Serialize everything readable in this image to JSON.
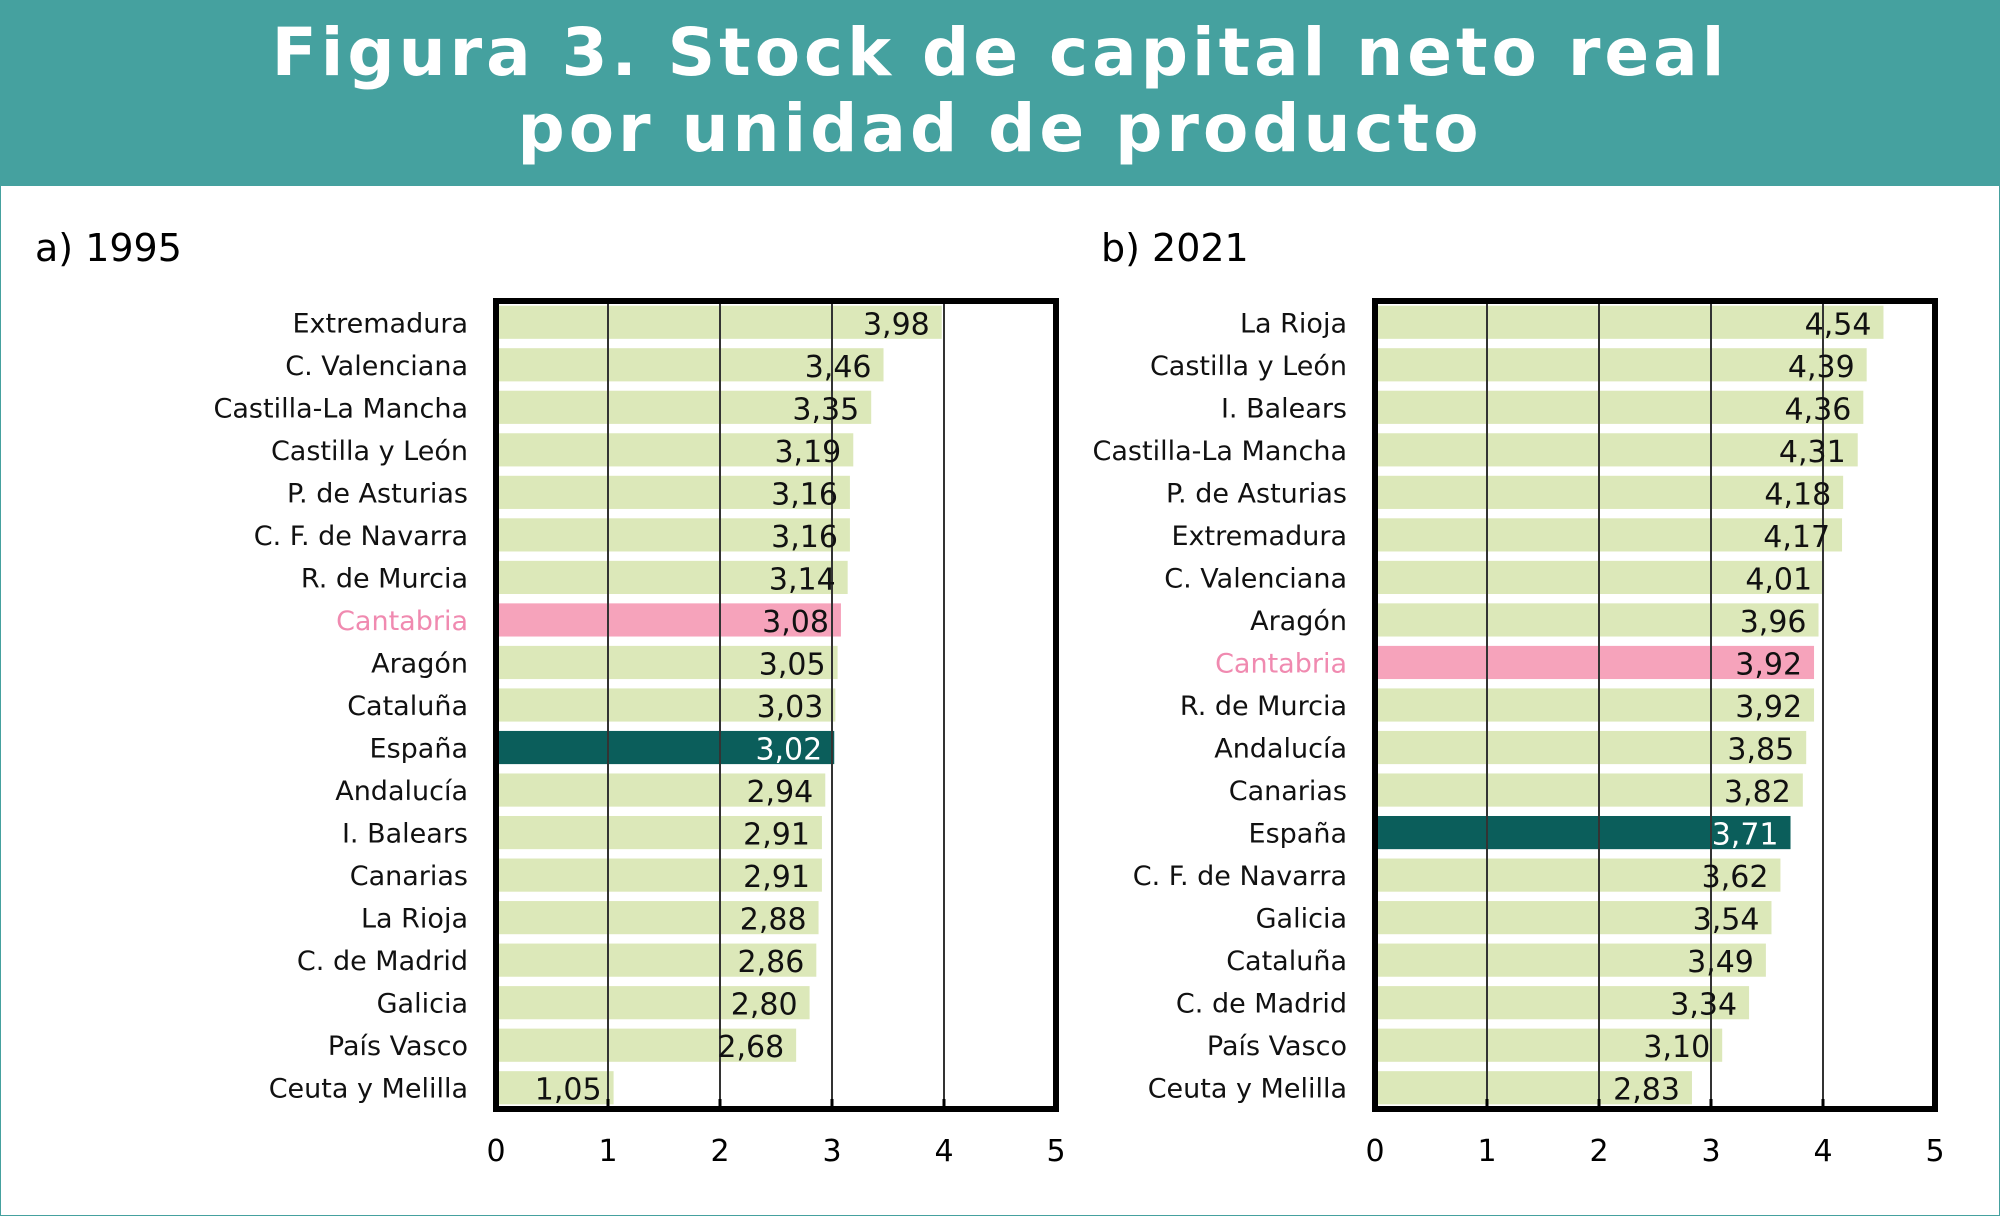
{
  "header": {
    "title_line1": "Figura 3. Stock de capital neto real",
    "title_line2": "por unidad de producto"
  },
  "colors": {
    "header_bg": "#45a19f",
    "bar_default": "#dce8b9",
    "bar_highlight": "#f6a3bb",
    "bar_total": "#0b5e5b",
    "highlight_label": "#f08ab0",
    "axis_frame": "#000000"
  },
  "chart_data": [
    {
      "type": "bar",
      "orientation": "horizontal",
      "title": "a) 1995",
      "categories": [
        "Extremadura",
        "C. Valenciana",
        "Castilla-La Mancha",
        "Castilla y León",
        "P. de Asturias",
        "C. F. de Navarra",
        "R. de Murcia",
        "Cantabria",
        "Aragón",
        "Cataluña",
        "España",
        "Andalucía",
        "I. Balears",
        "Canarias",
        "La Rioja",
        "C. de Madrid",
        "Galicia",
        "País Vasco",
        "Ceuta y Melilla"
      ],
      "values": [
        3.98,
        3.46,
        3.35,
        3.19,
        3.16,
        3.16,
        3.14,
        3.08,
        3.05,
        3.03,
        3.02,
        2.94,
        2.91,
        2.91,
        2.88,
        2.86,
        2.8,
        2.68,
        1.05
      ],
      "value_labels": [
        "3,98",
        "3,46",
        "3,35",
        "3,19",
        "3,16",
        "3,16",
        "3,14",
        "3,08",
        "3,05",
        "3,03",
        "3,02",
        "2,94",
        "2,91",
        "2,91",
        "2,88",
        "2,86",
        "2,80",
        "2,68",
        "1,05"
      ],
      "highlight": "Cantabria",
      "total": "España",
      "xlim": [
        0,
        5
      ],
      "xticks": [
        "0",
        "1",
        "2",
        "3",
        "4",
        "5"
      ],
      "grid": "vertical"
    },
    {
      "type": "bar",
      "orientation": "horizontal",
      "title": "b) 2021",
      "categories": [
        "La Rioja",
        "Castilla y León",
        "I. Balears",
        "Castilla-La Mancha",
        "P. de Asturias",
        "Extremadura",
        "C. Valenciana",
        "Aragón",
        "Cantabria",
        "R. de Murcia",
        "Andalucía",
        "Canarias",
        "España",
        "C. F. de Navarra",
        "Galicia",
        "Cataluña",
        "C. de Madrid",
        "País Vasco",
        "Ceuta y Melilla"
      ],
      "values": [
        4.54,
        4.39,
        4.36,
        4.31,
        4.18,
        4.17,
        4.01,
        3.96,
        3.92,
        3.92,
        3.85,
        3.82,
        3.71,
        3.62,
        3.54,
        3.49,
        3.34,
        3.1,
        2.83
      ],
      "value_labels": [
        "4,54",
        "4,39",
        "4,36",
        "4,31",
        "4,18",
        "4,17",
        "4,01",
        "3,96",
        "3,92",
        "3,92",
        "3,85",
        "3,82",
        "3,71",
        "3,62",
        "3,54",
        "3,49",
        "3,34",
        "3,10",
        "2,83"
      ],
      "highlight": "Cantabria",
      "total": "España",
      "xlim": [
        0,
        5
      ],
      "xticks": [
        "0",
        "1",
        "2",
        "3",
        "4",
        "5"
      ],
      "grid": "vertical"
    }
  ]
}
